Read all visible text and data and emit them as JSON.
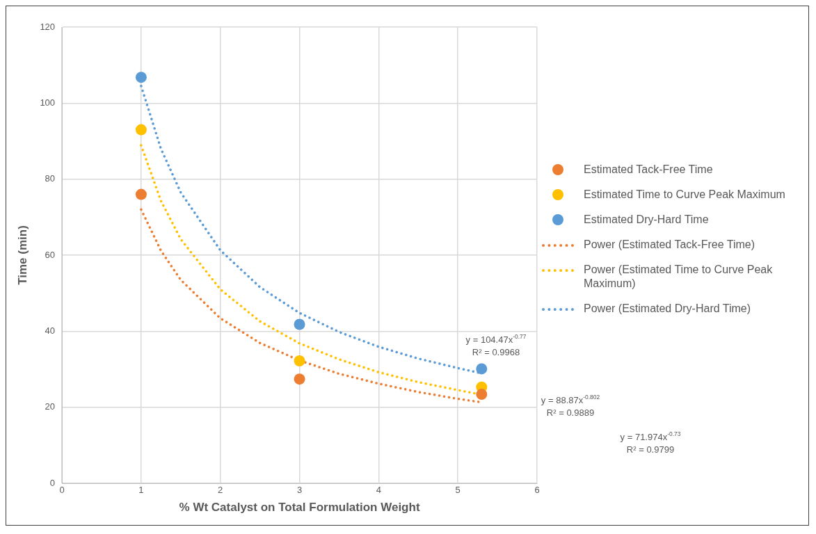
{
  "chart_data": {
    "type": "scatter",
    "xlabel": "% Wt Catalyst on Total Formulation Weight",
    "ylabel": "Time (min)",
    "xlim": [
      0,
      6
    ],
    "xticks": [
      0,
      1,
      2,
      3,
      4,
      5,
      6
    ],
    "ylim": [
      0,
      120
    ],
    "yticks": [
      0,
      20,
      40,
      60,
      80,
      100,
      120
    ],
    "grid": true,
    "legend": "right",
    "series": [
      {
        "name": "Estimated Tack-Free Time",
        "marker": "circle",
        "color": "#ed7d31",
        "x": [
          1,
          3,
          5.3
        ],
        "values": [
          76,
          27.4,
          23.4
        ]
      },
      {
        "name": "Estimated Time to Curve Peak Maximum",
        "marker": "circle",
        "color": "#ffc000",
        "x": [
          1,
          3,
          5.3
        ],
        "values": [
          93,
          32.2,
          25.3
        ]
      },
      {
        "name": "Estimated Dry-Hard Time",
        "marker": "circle",
        "color": "#5b9bd5",
        "x": [
          1,
          3,
          5.3
        ],
        "values": [
          106.8,
          41.8,
          30.1
        ]
      },
      {
        "name": "Power (Estimated Tack-Free Time)",
        "type": "line",
        "marker": "none",
        "line_style": "dotted",
        "color": "#ed7d31",
        "x": [
          1,
          1.25,
          1.5,
          2,
          2.5,
          3,
          3.5,
          4,
          4.5,
          5,
          5.3
        ],
        "values": [
          72.0,
          61.2,
          53.5,
          43.4,
          36.9,
          32.3,
          28.8,
          26.2,
          24.0,
          22.2,
          21.3
        ]
      },
      {
        "name": "Power (Estimated Time to Curve Peak Maximum)",
        "type": "line",
        "marker": "none",
        "line_style": "dotted",
        "color": "#ffc000",
        "x": [
          1,
          1.25,
          1.5,
          2,
          2.5,
          3,
          3.5,
          4,
          4.5,
          5,
          5.3
        ],
        "values": [
          88.9,
          74.3,
          64.2,
          51.0,
          42.6,
          36.8,
          32.6,
          29.2,
          26.6,
          24.5,
          23.3
        ]
      },
      {
        "name": "Power (Estimated Dry-Hard Time)",
        "type": "line",
        "marker": "none",
        "line_style": "dotted",
        "color": "#5b9bd5",
        "x": [
          1,
          1.25,
          1.5,
          2,
          2.5,
          3,
          3.5,
          4,
          4.5,
          5,
          5.3
        ],
        "values": [
          104.5,
          88.0,
          76.5,
          61.3,
          51.6,
          44.8,
          39.8,
          35.9,
          32.8,
          30.3,
          28.9
        ]
      }
    ],
    "annotations": [
      "y = 104.47x$^{-0.77}$\nR² = 0.9968",
      "y = 88.87x$^{-0.802}$\nR² = 0.9889",
      "y = 71.974x$^{-0.73}$\nR² = 0.9799"
    ]
  }
}
